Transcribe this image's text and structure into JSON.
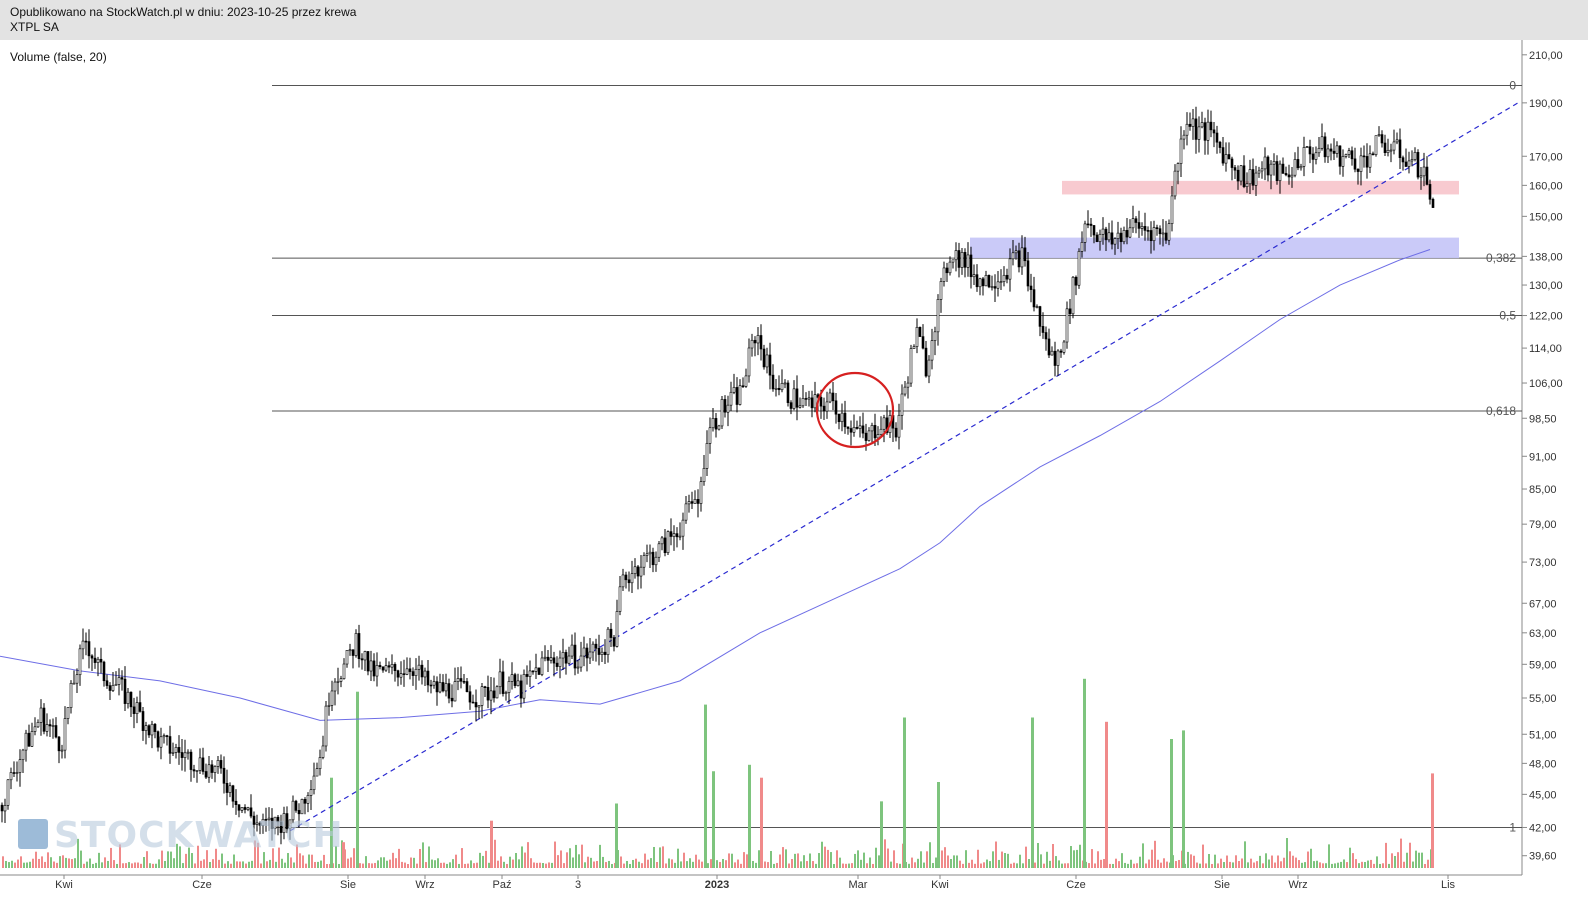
{
  "header": {
    "published": "Opublikowano na StockWatch.pl w dniu: 2023-10-25 przez krewa",
    "instrument": "XTPL SA"
  },
  "indicator_label": "Volume (false, 20)",
  "logo": {
    "text": "STOCKWATCH",
    "icon": "stockwatch-bars-icon"
  },
  "colors": {
    "header_bg": "#e3e3e3",
    "candle": "#000000",
    "ma_line": "#6e6ee6",
    "trendline": "#2a2ad0",
    "volume_up": "#7ec47e",
    "volume_down": "#f08a8a",
    "resistance_zone": "#f7c1c8",
    "support_zone": "#c4c4f7",
    "circle": "#d62020"
  },
  "chart_data": {
    "type": "candlestick",
    "y_scale": "log",
    "ylim": [
      38.2,
      213
    ],
    "y_ticks": [
      "210,00",
      "190,00",
      "170,00",
      "160,00",
      "150,00",
      "138,00",
      "130,00",
      "122,00",
      "114,00",
      "106,00",
      "98,50",
      "91,00",
      "85,00",
      "79,00",
      "73,00",
      "67,00",
      "63,00",
      "59,00",
      "55,00",
      "51,00",
      "48,00",
      "45,00",
      "42,00",
      "39,60"
    ],
    "x_labels": [
      "Kwi",
      "Cze",
      "Sie",
      "Wrz",
      "Paź",
      "3",
      "2023",
      "Mar",
      "Kwi",
      "Cze",
      "Sie",
      "Wrz",
      "Lis"
    ],
    "fibonacci": [
      {
        "label": "0",
        "value": 197
      },
      {
        "label": "0,382",
        "value": 137.5
      },
      {
        "label": "0,5",
        "value": 122
      },
      {
        "label": "0,618",
        "value": 100
      },
      {
        "label": "1",
        "value": 42
      }
    ],
    "resistance_zone": [
      157,
      161.5
    ],
    "support_zone": [
      137.5,
      143.5
    ],
    "trendline": [
      {
        "x": "2022-07",
        "y": 41.7
      },
      {
        "x": "2023-11",
        "y": 190
      }
    ],
    "ma_line": [
      {
        "x": 0,
        "y": 60
      },
      {
        "x": 80,
        "y": 58.2
      },
      {
        "x": 160,
        "y": 57
      },
      {
        "x": 240,
        "y": 55
      },
      {
        "x": 320,
        "y": 52.5
      },
      {
        "x": 400,
        "y": 52.8
      },
      {
        "x": 480,
        "y": 53.5
      },
      {
        "x": 540,
        "y": 54.8
      },
      {
        "x": 600,
        "y": 54.3
      },
      {
        "x": 680,
        "y": 57
      },
      {
        "x": 760,
        "y": 63
      },
      {
        "x": 840,
        "y": 68
      },
      {
        "x": 900,
        "y": 72
      },
      {
        "x": 940,
        "y": 76
      },
      {
        "x": 980,
        "y": 82
      },
      {
        "x": 1040,
        "y": 89
      },
      {
        "x": 1100,
        "y": 95
      },
      {
        "x": 1160,
        "y": 102
      },
      {
        "x": 1220,
        "y": 111
      },
      {
        "x": 1280,
        "y": 121
      },
      {
        "x": 1340,
        "y": 130
      },
      {
        "x": 1400,
        "y": 137
      },
      {
        "x": 1430,
        "y": 140
      }
    ],
    "close_path": [
      {
        "x": 0,
        "y": 44
      },
      {
        "x": 20,
        "y": 49
      },
      {
        "x": 40,
        "y": 53
      },
      {
        "x": 60,
        "y": 50
      },
      {
        "x": 75,
        "y": 58
      },
      {
        "x": 85,
        "y": 62
      },
      {
        "x": 100,
        "y": 58
      },
      {
        "x": 120,
        "y": 56
      },
      {
        "x": 140,
        "y": 53
      },
      {
        "x": 160,
        "y": 50
      },
      {
        "x": 180,
        "y": 49
      },
      {
        "x": 200,
        "y": 48
      },
      {
        "x": 220,
        "y": 47
      },
      {
        "x": 240,
        "y": 44
      },
      {
        "x": 260,
        "y": 42
      },
      {
        "x": 280,
        "y": 42.5
      },
      {
        "x": 300,
        "y": 44
      },
      {
        "x": 320,
        "y": 49
      },
      {
        "x": 330,
        "y": 57
      },
      {
        "x": 345,
        "y": 59
      },
      {
        "x": 355,
        "y": 62
      },
      {
        "x": 370,
        "y": 58
      },
      {
        "x": 390,
        "y": 58
      },
      {
        "x": 410,
        "y": 59
      },
      {
        "x": 430,
        "y": 56
      },
      {
        "x": 460,
        "y": 56
      },
      {
        "x": 480,
        "y": 55
      },
      {
        "x": 500,
        "y": 57
      },
      {
        "x": 520,
        "y": 56
      },
      {
        "x": 540,
        "y": 59
      },
      {
        "x": 560,
        "y": 60
      },
      {
        "x": 580,
        "y": 60
      },
      {
        "x": 600,
        "y": 61
      },
      {
        "x": 615,
        "y": 63
      },
      {
        "x": 620,
        "y": 70
      },
      {
        "x": 640,
        "y": 73
      },
      {
        "x": 660,
        "y": 75
      },
      {
        "x": 680,
        "y": 79
      },
      {
        "x": 700,
        "y": 85
      },
      {
        "x": 705,
        "y": 95
      },
      {
        "x": 720,
        "y": 100
      },
      {
        "x": 740,
        "y": 104
      },
      {
        "x": 755,
        "y": 118
      },
      {
        "x": 770,
        "y": 107
      },
      {
        "x": 790,
        "y": 103
      },
      {
        "x": 810,
        "y": 101
      },
      {
        "x": 830,
        "y": 102
      },
      {
        "x": 850,
        "y": 97
      },
      {
        "x": 865,
        "y": 94
      },
      {
        "x": 880,
        "y": 98
      },
      {
        "x": 895,
        "y": 96
      },
      {
        "x": 905,
        "y": 106
      },
      {
        "x": 915,
        "y": 118
      },
      {
        "x": 925,
        "y": 110
      },
      {
        "x": 935,
        "y": 122
      },
      {
        "x": 950,
        "y": 140
      },
      {
        "x": 965,
        "y": 136
      },
      {
        "x": 980,
        "y": 131
      },
      {
        "x": 1000,
        "y": 133
      },
      {
        "x": 1020,
        "y": 139
      },
      {
        "x": 1030,
        "y": 128
      },
      {
        "x": 1045,
        "y": 115
      },
      {
        "x": 1055,
        "y": 110
      },
      {
        "x": 1065,
        "y": 120
      },
      {
        "x": 1075,
        "y": 133
      },
      {
        "x": 1085,
        "y": 150
      },
      {
        "x": 1095,
        "y": 145
      },
      {
        "x": 1110,
        "y": 142
      },
      {
        "x": 1130,
        "y": 147
      },
      {
        "x": 1150,
        "y": 146
      },
      {
        "x": 1165,
        "y": 144
      },
      {
        "x": 1175,
        "y": 165
      },
      {
        "x": 1185,
        "y": 185
      },
      {
        "x": 1195,
        "y": 180
      },
      {
        "x": 1210,
        "y": 178
      },
      {
        "x": 1225,
        "y": 170
      },
      {
        "x": 1245,
        "y": 162
      },
      {
        "x": 1265,
        "y": 166
      },
      {
        "x": 1285,
        "y": 163
      },
      {
        "x": 1300,
        "y": 170
      },
      {
        "x": 1320,
        "y": 173
      },
      {
        "x": 1340,
        "y": 170
      },
      {
        "x": 1360,
        "y": 168
      },
      {
        "x": 1380,
        "y": 175
      },
      {
        "x": 1400,
        "y": 171
      },
      {
        "x": 1420,
        "y": 166
      },
      {
        "x": 1428,
        "y": 160
      },
      {
        "x": 1432,
        "y": 150
      }
    ],
    "volume_spikes": [
      {
        "x": 330,
        "v": 0.42,
        "up": true
      },
      {
        "x": 342,
        "v": 0.12,
        "up": false
      },
      {
        "x": 356,
        "v": 0.82,
        "up": true
      },
      {
        "x": 490,
        "v": 0.22,
        "up": false
      },
      {
        "x": 615,
        "v": 0.3,
        "up": true
      },
      {
        "x": 704,
        "v": 0.76,
        "up": true
      },
      {
        "x": 712,
        "v": 0.45,
        "up": true
      },
      {
        "x": 748,
        "v": 0.48,
        "up": true
      },
      {
        "x": 760,
        "v": 0.42,
        "up": false
      },
      {
        "x": 880,
        "v": 0.31,
        "up": true
      },
      {
        "x": 903,
        "v": 0.7,
        "up": true
      },
      {
        "x": 937,
        "v": 0.4,
        "up": true
      },
      {
        "x": 1031,
        "v": 0.7,
        "up": true
      },
      {
        "x": 1083,
        "v": 0.88,
        "up": true
      },
      {
        "x": 1105,
        "v": 0.68,
        "up": false
      },
      {
        "x": 1170,
        "v": 0.6,
        "up": true
      },
      {
        "x": 1182,
        "v": 0.64,
        "up": true
      },
      {
        "x": 1431,
        "v": 0.44,
        "up": false
      }
    ]
  }
}
